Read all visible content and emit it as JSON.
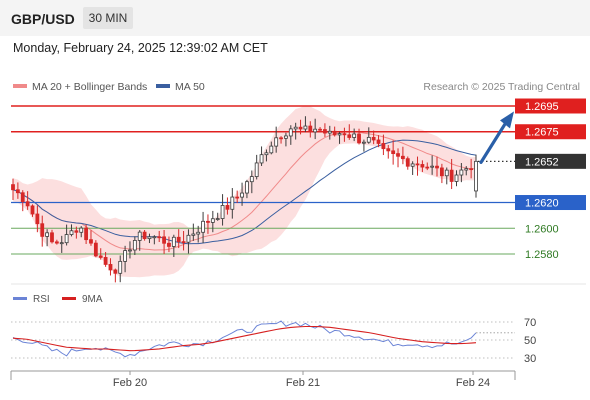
{
  "header": {
    "pair": "GBP/USD",
    "timeframe": "30 MIN"
  },
  "datetime": "Monday, February 24, 2025 12:39:02 AM CET",
  "legend": {
    "ma20_label": "MA 20 + Bollinger Bands",
    "ma50_label": "MA 50",
    "copyright": "Research © 2025 Trading Central"
  },
  "rsi_legend": {
    "rsi_label": "RSI",
    "ma_label": "9MA"
  },
  "colors": {
    "resistance": "#e0201f",
    "support": "#2a62c9",
    "minor_support": "#6aa85f",
    "current": "#333333",
    "up_candle": "#3d3d3d",
    "down_candle": "#d62828",
    "ma20": "#f08a8a",
    "ma50": "#3a5fa0",
    "bb_fill": "#fbd9d9",
    "arrow": "#2a5fa8",
    "rsi_line": "#6b84d6",
    "rsi_ma": "#d62020"
  },
  "chart_data": {
    "type": "candlestick",
    "instrument": "GBP/USD",
    "timeframe": "30 MIN",
    "x_ticks": [
      "Feb 20",
      "Feb 21",
      "Feb 24"
    ],
    "price_levels": [
      {
        "name": "resistance-2",
        "value": 1.2695,
        "label": "1.2695",
        "style": "resistance"
      },
      {
        "name": "resistance-1",
        "value": 1.2675,
        "label": "1.2675",
        "style": "resistance"
      },
      {
        "name": "current",
        "value": 1.2652,
        "label": "1.2652",
        "style": "current"
      },
      {
        "name": "support-1",
        "value": 1.262,
        "label": "1.2620",
        "style": "support"
      },
      {
        "name": "support-2",
        "value": 1.26,
        "label": "1.2600",
        "style": "minor"
      },
      {
        "name": "support-3",
        "value": 1.258,
        "label": "1.2580",
        "style": "minor"
      }
    ],
    "close_path": [
      1.263,
      1.2622,
      1.26,
      1.2588,
      1.2592,
      1.2603,
      1.2585,
      1.2572,
      1.2568,
      1.259,
      1.2595,
      1.2592,
      1.2588,
      1.2592,
      1.26,
      1.2608,
      1.2615,
      1.2625,
      1.264,
      1.266,
      1.2672,
      1.2678,
      1.2675,
      1.2678,
      1.2672,
      1.2675,
      1.267,
      1.2668,
      1.2658,
      1.2655,
      1.2652,
      1.265,
      1.2645,
      1.264,
      1.2645,
      1.2652
    ],
    "forecast_arrow": {
      "from": 1.2652,
      "to": 1.269
    },
    "rsi": {
      "ticks": [
        70,
        50,
        30
      ],
      "ylim": [
        20,
        80
      ],
      "values": [
        52,
        50,
        44,
        38,
        35,
        40,
        43,
        38,
        35,
        34,
        40,
        44,
        47,
        46,
        46,
        49,
        55,
        58,
        62,
        65,
        68,
        69,
        68,
        64,
        60,
        58,
        55,
        52,
        48,
        46,
        47,
        45,
        44,
        46,
        45,
        58
      ],
      "ma": [
        52,
        51,
        48,
        45,
        42,
        41,
        40,
        40,
        39,
        38,
        39,
        40,
        42,
        44,
        45,
        47,
        50,
        53,
        56,
        59,
        62,
        64,
        65,
        65,
        64,
        62,
        60,
        58,
        55,
        52,
        50,
        48,
        47,
        46,
        46,
        47
      ]
    }
  }
}
